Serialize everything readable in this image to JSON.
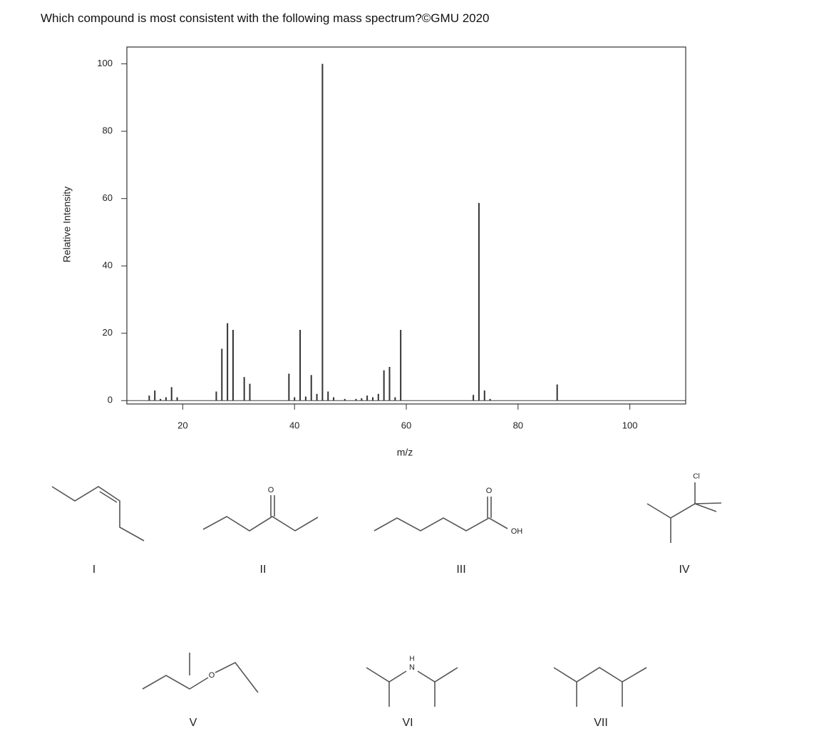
{
  "question": "Which compound is most consistent with the following mass spectrum?©GMU 2020",
  "chart_data": {
    "type": "bar",
    "xlabel": "m/z",
    "ylabel": "Relative Intensity",
    "color": "#333333",
    "x": [
      14,
      15,
      16,
      17,
      18,
      19,
      26,
      27,
      28,
      29,
      31,
      32,
      39,
      40,
      41,
      42,
      43,
      44,
      45,
      46,
      47,
      49,
      51,
      52,
      53,
      54,
      55,
      56,
      57,
      58,
      59,
      72,
      73,
      74,
      75,
      87
    ],
    "values": [
      1.5,
      3,
      0.5,
      1,
      4,
      1,
      2.7,
      15.4,
      23,
      21,
      7,
      5,
      8,
      1,
      21,
      1.2,
      7.6,
      2,
      100,
      2.7,
      1,
      0.5,
      0.5,
      0.7,
      1.5,
      1,
      2,
      9,
      10,
      1,
      21,
      1.7,
      58.7,
      3,
      0.5,
      4.8
    ],
    "xlim": [
      10,
      110
    ],
    "ylim": [
      -1,
      105
    ],
    "xticks": [
      20,
      40,
      60,
      80,
      100
    ],
    "yticks": [
      0,
      20,
      40,
      60,
      80,
      100
    ]
  },
  "compounds": [
    {
      "label": "I",
      "atoms": []
    },
    {
      "label": "II",
      "atoms": [
        "O"
      ]
    },
    {
      "label": "III",
      "atoms": [
        "O",
        "OH"
      ]
    },
    {
      "label": "IV",
      "atoms": [
        "Cl"
      ]
    },
    {
      "label": "V",
      "atoms": [
        "O"
      ]
    },
    {
      "label": "VI",
      "atoms": [
        "H",
        "N"
      ]
    },
    {
      "label": "VII",
      "atoms": []
    }
  ]
}
